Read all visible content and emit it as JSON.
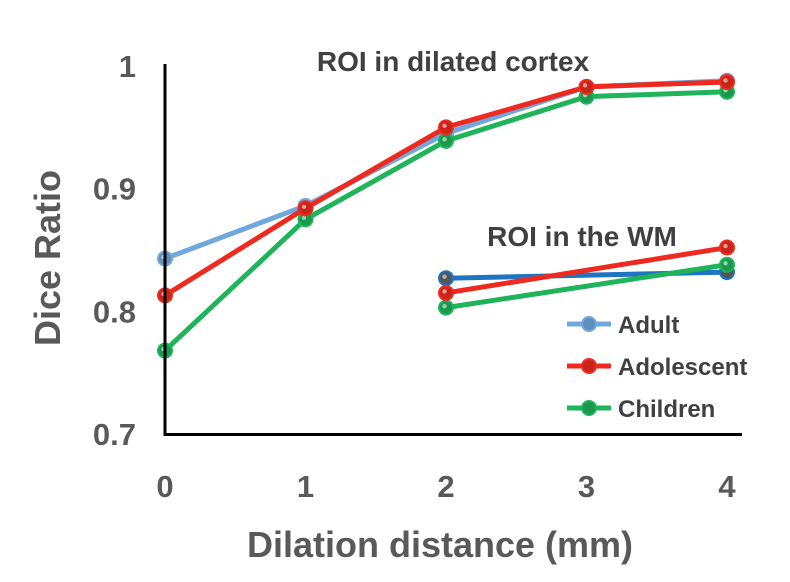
{
  "chart_data": {
    "type": "line",
    "xlabel": "Dilation distance (mm)",
    "ylabel": "Dice Ratio",
    "xlim": [
      0,
      4
    ],
    "ylim": [
      0.7,
      1.0
    ],
    "xticks": [
      "0",
      "1",
      "2",
      "3",
      "4"
    ],
    "yticks": [
      "0.7",
      "0.8",
      "0.9",
      "1"
    ],
    "annotations": [
      "ROI in dilated cortex",
      "ROI in the WM"
    ],
    "legend": {
      "position": "bottom-right",
      "entries": [
        "Adult",
        "Adolescent",
        "Children"
      ]
    },
    "colors": {
      "Adult": "#6fa8dc",
      "Adolescent": "#ee2a1e",
      "Children": "#1fb35a",
      "Adult WM": "#1f74c4",
      "axis": "#000000"
    },
    "series": [
      {
        "name": "Adult",
        "group": "ROI in dilated cortex",
        "x": [
          0,
          1,
          2,
          3,
          4
        ],
        "values": [
          0.843,
          0.886,
          0.945,
          0.983,
          0.988
        ]
      },
      {
        "name": "Adolescent",
        "group": "ROI in dilated cortex",
        "x": [
          0,
          1,
          2,
          3,
          4
        ],
        "values": [
          0.813,
          0.884,
          0.95,
          0.983,
          0.987
        ]
      },
      {
        "name": "Children",
        "group": "ROI in dilated cortex",
        "x": [
          0,
          1,
          2,
          3,
          4
        ],
        "values": [
          0.768,
          0.875,
          0.939,
          0.975,
          0.979
        ]
      },
      {
        "name": "Adult",
        "group": "ROI in the WM",
        "x": [
          2,
          4
        ],
        "values": [
          0.827,
          0.832
        ]
      },
      {
        "name": "Adolescent",
        "group": "ROI in the WM",
        "x": [
          2,
          4
        ],
        "values": [
          0.815,
          0.852
        ]
      },
      {
        "name": "Children",
        "group": "ROI in the WM",
        "x": [
          2,
          4
        ],
        "values": [
          0.803,
          0.838
        ]
      }
    ]
  }
}
